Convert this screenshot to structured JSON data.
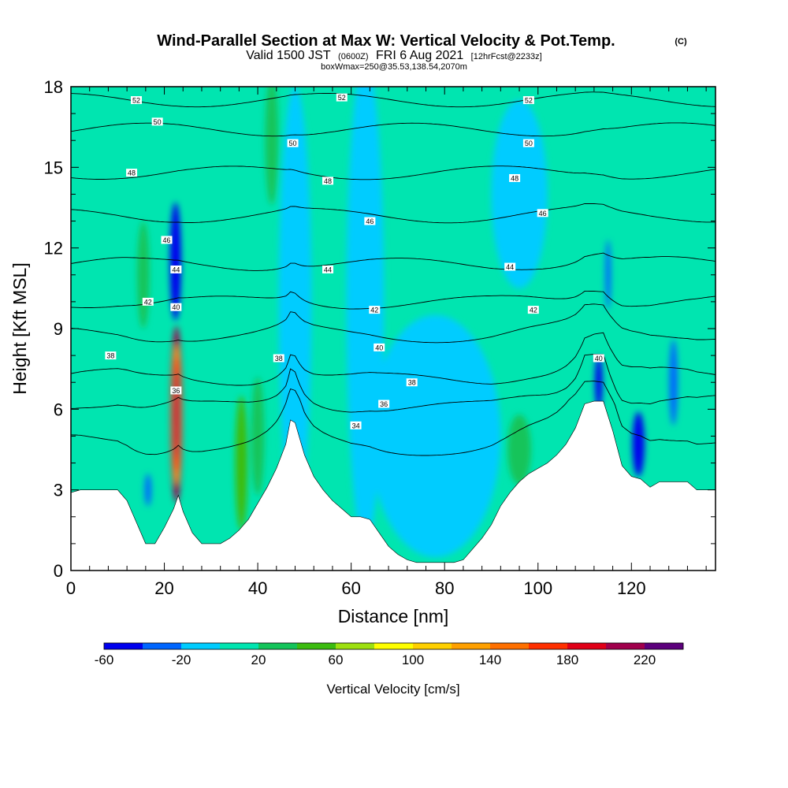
{
  "chart_data": {
    "type": "heatmap",
    "title": "Wind-Parallel Section at Max W: Vertical Velocity & Pot.Temp.",
    "title_mark": "(C)",
    "subtitle": {
      "valid": "Valid 1500 JST",
      "utc": "(0600Z)",
      "date": "FRI 6 Aug 2021",
      "fcst": "[12hrFcst@2233z]"
    },
    "box_info": "boxWmax=250@35.53,138.54,2070m",
    "xlabel": "Distance [nm]",
    "ylabel": "Height [Kft MSL]",
    "xlim": [
      0,
      138
    ],
    "ylim": [
      0,
      18
    ],
    "xticks": [
      0,
      20,
      40,
      60,
      80,
      100,
      120
    ],
    "yticks": [
      0,
      3,
      6,
      9,
      12,
      15,
      18
    ],
    "colorbar": {
      "label": "Vertical Velocity [cm/s]",
      "tick_values": [
        -60,
        -20,
        20,
        60,
        100,
        140,
        180,
        220
      ],
      "levels": [
        -60,
        -40,
        -20,
        0,
        20,
        40,
        60,
        80,
        100,
        120,
        140,
        160,
        180,
        200,
        220,
        240
      ],
      "colors": [
        "#0000ee",
        "#0066ff",
        "#00ccff",
        "#00e5b0",
        "#14c45a",
        "#3cbc10",
        "#9de010",
        "#ffff00",
        "#ffd000",
        "#ffa000",
        "#ff7000",
        "#ff3000",
        "#e00018",
        "#a0004c",
        "#5c007c"
      ]
    },
    "background_color": "#00e5b0",
    "terrain_color": "#ffffff",
    "terrain_profile": {
      "x": [
        0,
        2,
        4,
        6,
        8,
        10,
        12,
        14,
        16,
        18,
        20,
        22,
        23,
        24,
        26,
        28,
        30,
        32,
        34,
        36,
        38,
        40,
        42,
        44,
        46,
        47,
        48,
        50,
        52,
        54,
        56,
        58,
        60,
        62,
        64,
        66,
        68,
        70,
        72,
        74,
        76,
        78,
        80,
        82,
        84,
        86,
        88,
        90,
        92,
        94,
        96,
        98,
        100,
        102,
        104,
        106,
        108,
        110,
        112,
        113,
        114,
        116,
        118,
        120,
        122,
        124,
        126,
        128,
        130,
        132,
        134,
        136,
        138
      ],
      "height": [
        2.9,
        3.0,
        3.0,
        3.0,
        3.0,
        3.0,
        2.6,
        1.8,
        1.0,
        1.0,
        1.6,
        2.3,
        2.8,
        2.2,
        1.4,
        1.0,
        1.0,
        1.0,
        1.2,
        1.5,
        1.9,
        2.5,
        3.1,
        3.8,
        4.7,
        5.6,
        5.5,
        4.3,
        3.5,
        3.0,
        2.6,
        2.3,
        2.0,
        2.0,
        1.9,
        1.4,
        0.9,
        0.6,
        0.4,
        0.3,
        0.3,
        0.3,
        0.3,
        0.3,
        0.4,
        0.8,
        1.2,
        1.7,
        2.4,
        2.9,
        3.3,
        3.6,
        3.8,
        4.0,
        4.3,
        4.7,
        5.3,
        6.2,
        6.3,
        6.3,
        6.3,
        5.2,
        3.9,
        3.5,
        3.4,
        3.1,
        3.3,
        3.3,
        3.3,
        3.3,
        3.0,
        3.0,
        3.0
      ]
    },
    "vertical_velocity_features": [
      {
        "x": 22.6,
        "y": 5.8,
        "rx": 1.3,
        "ry": 3.3,
        "value": 200
      },
      {
        "x": 22.4,
        "y": 11.5,
        "rx": 1.2,
        "ry": 2.2,
        "value": -60
      },
      {
        "x": 15.5,
        "y": 11.0,
        "rx": 1.3,
        "ry": 2.0,
        "value": 30
      },
      {
        "x": 36.5,
        "y": 4.0,
        "rx": 1.3,
        "ry": 2.5,
        "value": 50
      },
      {
        "x": 43.0,
        "y": 16.0,
        "rx": 1.4,
        "ry": 2.4,
        "value": 30
      },
      {
        "x": 50.2,
        "y": 11.5,
        "rx": 1.2,
        "ry": 2.5,
        "value": 30
      },
      {
        "x": 48.0,
        "y": 10.0,
        "rx": 3.5,
        "ry": 8.0,
        "value": -20
      },
      {
        "x": 63.0,
        "y": 10.0,
        "rx": 4.0,
        "ry": 9.0,
        "value": -20
      },
      {
        "x": 78.0,
        "y": 5.0,
        "rx": 14.0,
        "ry": 4.5,
        "value": -20
      },
      {
        "x": 96.0,
        "y": 14.0,
        "rx": 6.0,
        "ry": 3.5,
        "value": -20
      },
      {
        "x": 115.0,
        "y": 11.0,
        "rx": 0.6,
        "ry": 1.3,
        "value": -40
      },
      {
        "x": 113.0,
        "y": 7.0,
        "rx": 0.8,
        "ry": 1.0,
        "value": -60
      },
      {
        "x": 121.5,
        "y": 4.7,
        "rx": 1.3,
        "ry": 1.2,
        "value": -60
      },
      {
        "x": 129.0,
        "y": 7.0,
        "rx": 0.9,
        "ry": 1.6,
        "value": -40
      },
      {
        "x": 40.0,
        "y": 5.0,
        "rx": 1.4,
        "ry": 2.2,
        "value": 30
      },
      {
        "x": 96.0,
        "y": 4.5,
        "rx": 2.5,
        "ry": 1.3,
        "value": 30
      },
      {
        "x": 16.5,
        "y": 3.0,
        "rx": 0.7,
        "ry": 0.6,
        "value": -40
      }
    ],
    "potential_temperature_isolines": [
      {
        "value": 34,
        "y": 4.8
      },
      {
        "value": 36,
        "y": 6.2
      },
      {
        "value": 38,
        "y": 7.2
      },
      {
        "value": 40,
        "y": 8.8
      },
      {
        "value": 42,
        "y": 10.0
      },
      {
        "value": 44,
        "y": 11.4
      },
      {
        "value": 46,
        "y": 13.2
      },
      {
        "value": 48,
        "y": 14.8
      },
      {
        "value": 50,
        "y": 16.4
      },
      {
        "value": 52,
        "y": 17.5
      }
    ],
    "isoline_labels": [
      {
        "text": "52",
        "x": 14,
        "y": 17.5
      },
      {
        "text": "52",
        "x": 58,
        "y": 17.6
      },
      {
        "text": "52",
        "x": 98,
        "y": 17.5
      },
      {
        "text": "50",
        "x": 18.5,
        "y": 16.7
      },
      {
        "text": "50",
        "x": 47.5,
        "y": 15.9
      },
      {
        "text": "50",
        "x": 98,
        "y": 15.9
      },
      {
        "text": "48",
        "x": 13,
        "y": 14.8
      },
      {
        "text": "48",
        "x": 55,
        "y": 14.5
      },
      {
        "text": "48",
        "x": 95,
        "y": 14.6
      },
      {
        "text": "46",
        "x": 20.5,
        "y": 12.3
      },
      {
        "text": "46",
        "x": 64,
        "y": 13.0
      },
      {
        "text": "46",
        "x": 101,
        "y": 13.3
      },
      {
        "text": "44",
        "x": 22.5,
        "y": 11.2
      },
      {
        "text": "44",
        "x": 55,
        "y": 11.2
      },
      {
        "text": "44",
        "x": 94,
        "y": 11.3
      },
      {
        "text": "42",
        "x": 16.5,
        "y": 10.0
      },
      {
        "text": "42",
        "x": 65,
        "y": 9.7
      },
      {
        "text": "42",
        "x": 99,
        "y": 9.7
      },
      {
        "text": "40",
        "x": 22.5,
        "y": 9.8
      },
      {
        "text": "40",
        "x": 66,
        "y": 8.3
      },
      {
        "text": "40",
        "x": 113,
        "y": 7.9
      },
      {
        "text": "38",
        "x": 8.5,
        "y": 8.0
      },
      {
        "text": "38",
        "x": 44.5,
        "y": 7.9
      },
      {
        "text": "38",
        "x": 73,
        "y": 7.0
      },
      {
        "text": "36",
        "x": 22.5,
        "y": 6.7
      },
      {
        "text": "36",
        "x": 67,
        "y": 6.2
      },
      {
        "text": "34",
        "x": 61,
        "y": 5.4
      }
    ]
  }
}
